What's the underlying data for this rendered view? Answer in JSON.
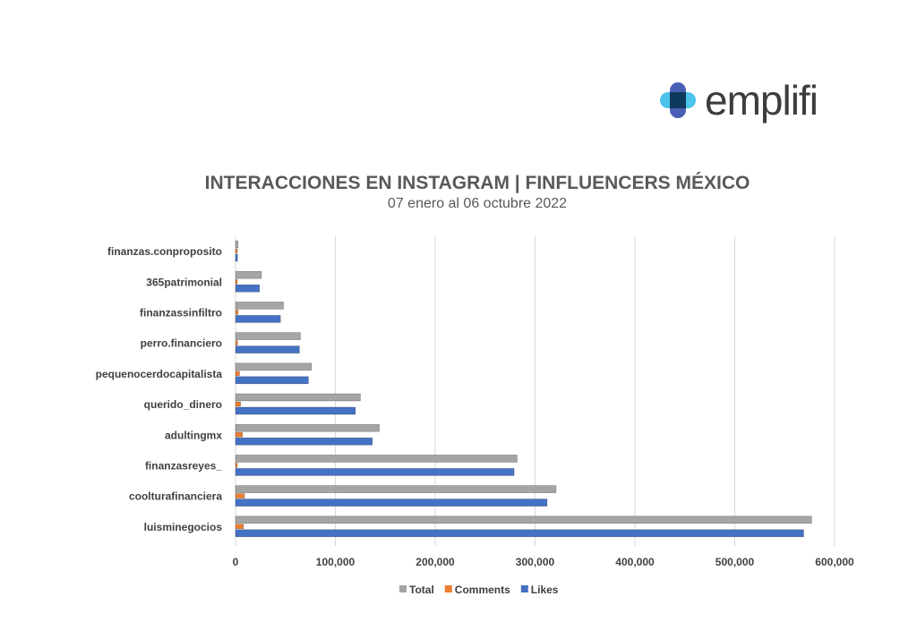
{
  "logo": {
    "text": "emplifi"
  },
  "chart_data": {
    "type": "bar",
    "orientation": "horizontal",
    "title": "INTERACCIONES EN INSTAGRAM | FINFLUENCERS MÉXICO",
    "subtitle": "07 enero al 06 octubre 2022",
    "categories": [
      "finanzas.conproposito",
      "365patrimonial",
      "finanzassinfiltro",
      "perro.financiero",
      "pequenocerdocapitalista",
      "querido_dinero",
      "adultingmx",
      "finanzasreyes_",
      "coolturafinanciera",
      "luisminegocios"
    ],
    "series": [
      {
        "name": "Total",
        "color": "#a5a5a5",
        "values": [
          2500,
          26000,
          48000,
          65000,
          76000,
          125000,
          144000,
          282000,
          321000,
          577000
        ]
      },
      {
        "name": "Comments",
        "color": "#ed7d31",
        "values": [
          500,
          1500,
          2500,
          2000,
          4000,
          5000,
          7000,
          1500,
          9000,
          8000
        ]
      },
      {
        "name": "Likes",
        "color": "#4472c4",
        "values": [
          2000,
          24000,
          45000,
          64000,
          73000,
          120000,
          137000,
          279000,
          312000,
          569000
        ]
      }
    ],
    "xlim": [
      0,
      600000
    ],
    "xticks": [
      "0",
      "100,000",
      "200,000",
      "300,000",
      "400,000",
      "500,000",
      "600,000"
    ],
    "grid": true,
    "legend": "bottom"
  }
}
